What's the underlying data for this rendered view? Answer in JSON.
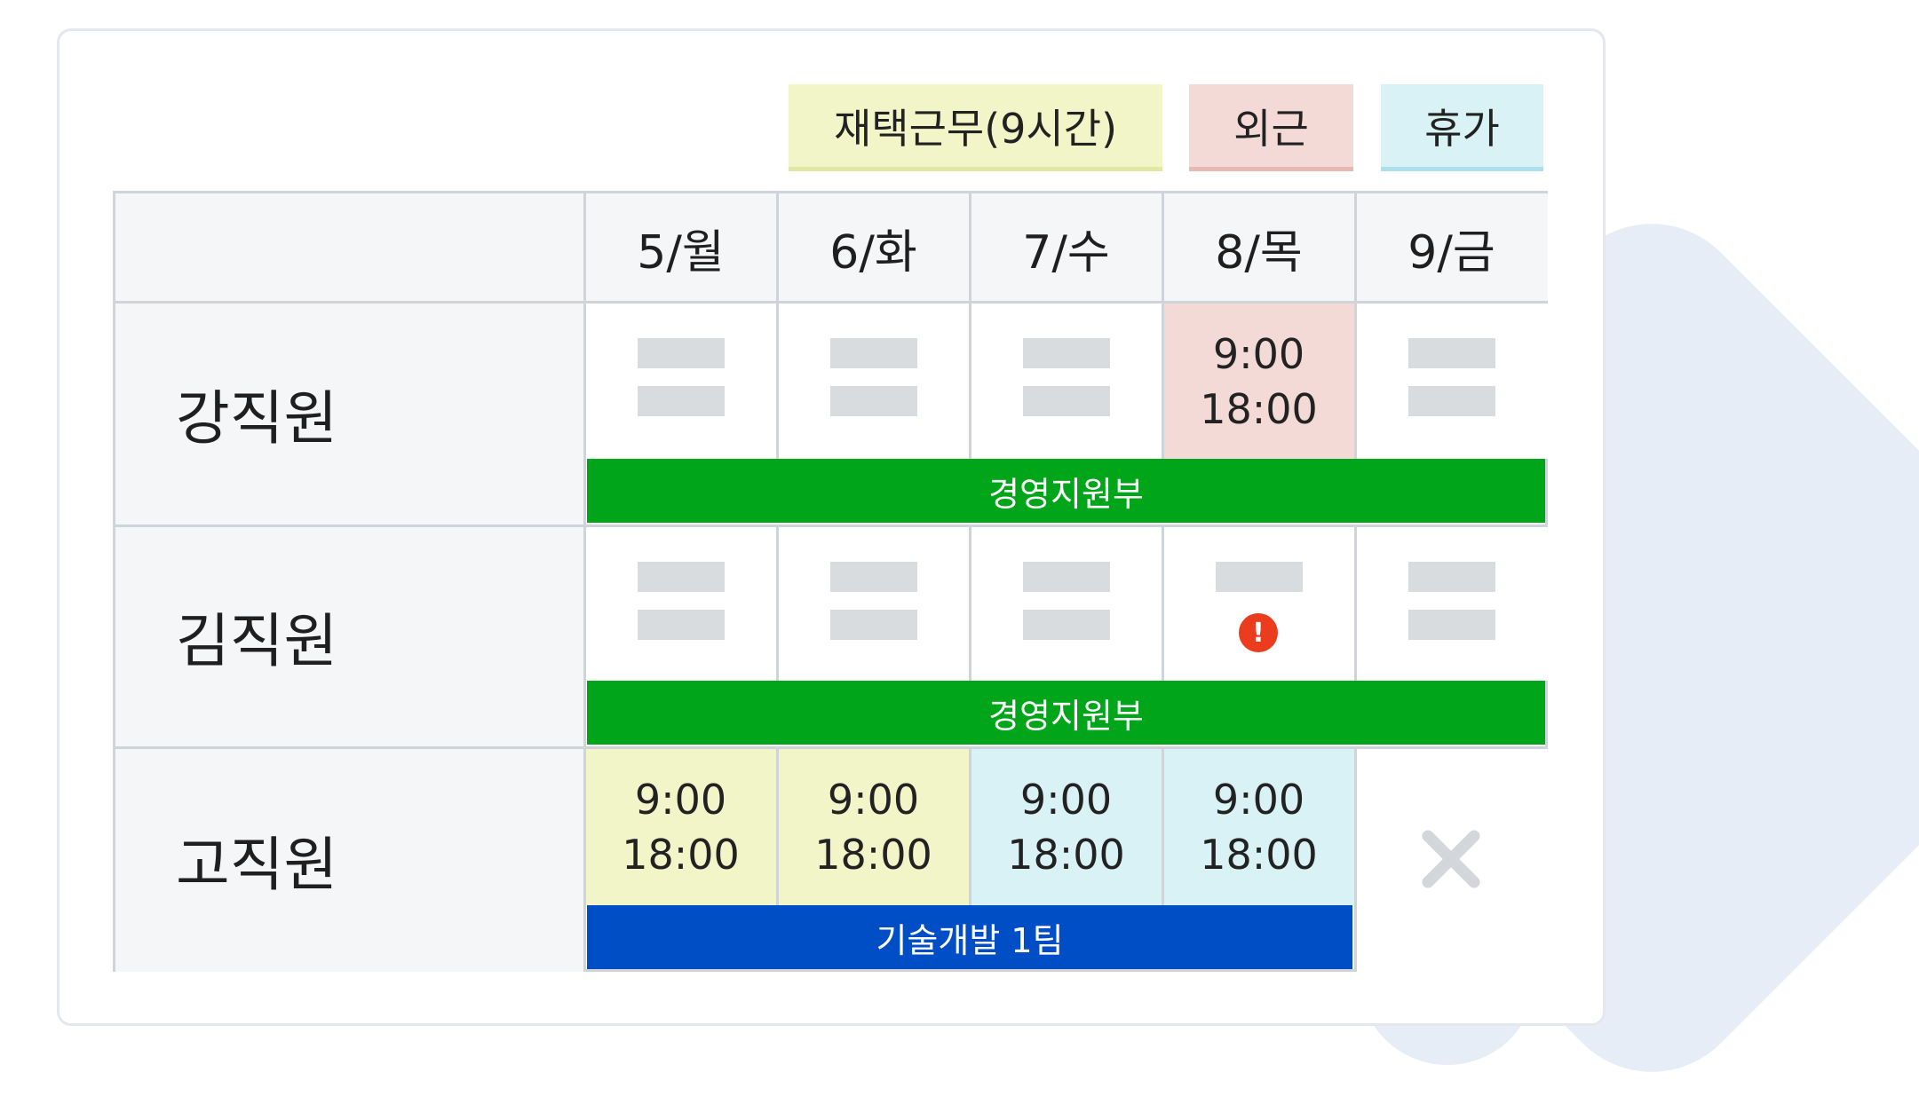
{
  "legend": [
    {
      "label": "재택근무(9시간)",
      "color": "#f1f5c8"
    },
    {
      "label": "외근",
      "color": "#f3dad6"
    },
    {
      "label": "휴가",
      "color": "#d9f2f5"
    }
  ],
  "schedule": {
    "days": [
      "5/월",
      "6/화",
      "7/수",
      "8/목",
      "9/금"
    ],
    "employees": [
      {
        "name": "강직원",
        "department": "경영지원부",
        "cells": [
          {
            "type": "empty"
          },
          {
            "type": "empty"
          },
          {
            "type": "empty"
          },
          {
            "type": "outside",
            "start": "9:00",
            "end": "18:00"
          },
          {
            "type": "empty"
          }
        ]
      },
      {
        "name": "김직원",
        "department": "경영지원부",
        "cells": [
          {
            "type": "empty"
          },
          {
            "type": "empty"
          },
          {
            "type": "empty"
          },
          {
            "type": "warning",
            "icon": "!"
          },
          {
            "type": "empty"
          }
        ]
      },
      {
        "name": "고직원",
        "department": "기술개발 1팀",
        "cells": [
          {
            "type": "remote",
            "start": "9:00",
            "end": "18:00"
          },
          {
            "type": "remote",
            "start": "9:00",
            "end": "18:00"
          },
          {
            "type": "vacation",
            "start": "9:00",
            "end": "18:00"
          },
          {
            "type": "vacation",
            "start": "9:00",
            "end": "18:00"
          },
          {
            "type": "off",
            "icon": "close-icon"
          }
        ]
      }
    ]
  },
  "colors": {
    "department_green": "#00a519",
    "department_blue": "#004ec5",
    "warning": "#ec3c1e"
  }
}
